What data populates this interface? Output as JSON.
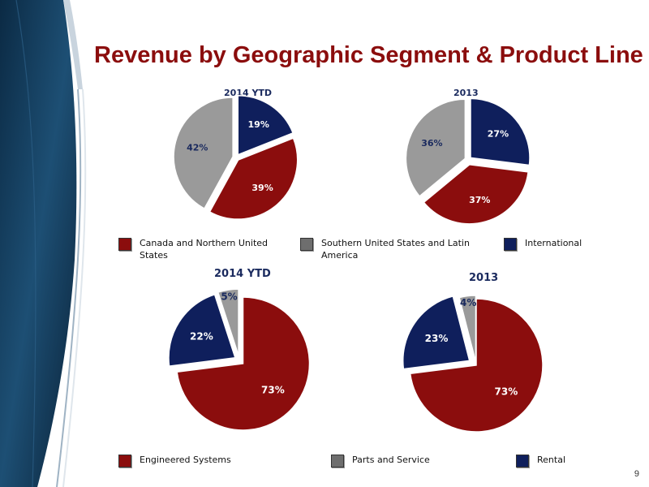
{
  "title": "Revenue by Geographic Segment & Product Line",
  "page_number": "9",
  "colors": {
    "title": "#8b0d0d",
    "red": "#8b0d0d",
    "gray": "#9a9a9a",
    "navy": "#0f1f5c"
  },
  "legend_geo": [
    {
      "label": "Canada and Northern United States",
      "color": "#8b0d0d"
    },
    {
      "label": "Southern United States and Latin America",
      "color": "#6e6e6e"
    },
    {
      "label": "International",
      "color": "#0f1f5c"
    }
  ],
  "legend_product": [
    {
      "label": "Engineered Systems",
      "color": "#8b0d0d"
    },
    {
      "label": "Parts and Service",
      "color": "#6e6e6e"
    },
    {
      "label": "Rental",
      "color": "#0f1f5c"
    }
  ],
  "chart_data": [
    {
      "type": "pie",
      "title": "2014 YTD",
      "categories": [
        "International",
        "Canada and Northern United States",
        "Southern United States and Latin America"
      ],
      "values": [
        19,
        39,
        42
      ],
      "labels": [
        "19%",
        "39%",
        "42%"
      ]
    },
    {
      "type": "pie",
      "title": "2013",
      "categories": [
        "International",
        "Canada and Northern United States",
        "Southern United States and Latin America"
      ],
      "values": [
        27,
        37,
        36
      ],
      "labels": [
        "27%",
        "37%",
        "36%"
      ]
    },
    {
      "type": "pie",
      "title": "2014 YTD",
      "categories": [
        "Engineered Systems",
        "Rental",
        "Parts and Service"
      ],
      "values": [
        73,
        22,
        5
      ],
      "labels": [
        "73%",
        "22%",
        "5%"
      ]
    },
    {
      "type": "pie",
      "title": "2013",
      "categories": [
        "Engineered Systems",
        "Rental",
        "Parts and Service"
      ],
      "values": [
        73,
        23,
        4
      ],
      "labels": [
        "73%",
        "23%",
        "4%"
      ]
    }
  ]
}
